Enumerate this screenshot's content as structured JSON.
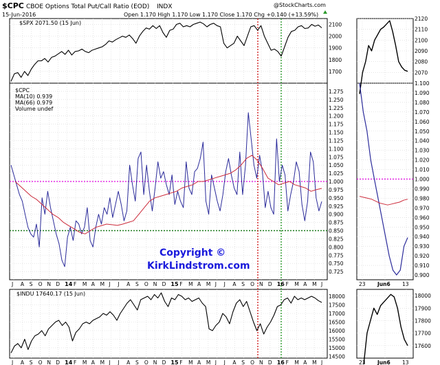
{
  "header": {
    "symbol": "$CPC",
    "description": "CBOE Options Total Put/Call Ratio (EOD)",
    "exchange": "INDX",
    "watermark": "@StockCharts.com",
    "date": "15-Jun-2016",
    "ohlc": "Open 1.170  High 1.170  Low 1.170  Close 1.170  Chg +0.140 (+13.59%)"
  },
  "copyright": {
    "line1": "Copyright ©",
    "line2": "KirkLindstrom.com"
  },
  "colors": {
    "price_line": "#000000",
    "cpc_line": "#2a2a9a",
    "ma66_line": "#cc2a3a",
    "magenta_ref": "#e000e0",
    "green_ref": "#1a7a1a",
    "red_vline": "#d02020",
    "green_vline": "#2a9a2a",
    "copyright_text": "#1a1adc",
    "grid": "#d4d4d4"
  },
  "x_labels_main": [
    "J",
    "A",
    "S",
    "O",
    "N",
    "D",
    "14",
    "F",
    "M",
    "A",
    "M",
    "J",
    "J",
    "A",
    "S",
    "O",
    "N",
    "D",
    "15",
    "F",
    "M",
    "A",
    "M",
    "J",
    "J",
    "A",
    "S",
    "O",
    "N",
    "D",
    "16",
    "F",
    "M",
    "A",
    "M",
    "J"
  ],
  "x_labels_inset": [
    "23",
    "Jun6",
    "13"
  ],
  "chart_data": [
    {
      "panel": "spx_main",
      "type": "line",
      "legend": "$SPX 2071.50 (15 Jun)",
      "series": [
        {
          "name": "$SPX",
          "values": [
            1615,
            1680,
            1690,
            1650,
            1700,
            1665,
            1720,
            1760,
            1790,
            1790,
            1810,
            1780,
            1820,
            1830,
            1850,
            1870,
            1845,
            1880,
            1840,
            1870,
            1875,
            1890,
            1870,
            1860,
            1880,
            1890,
            1900,
            1910,
            1930,
            1960,
            1950,
            1970,
            1985,
            2000,
            1990,
            2010,
            1980,
            1940,
            2000,
            2040,
            2070,
            2060,
            2090,
            2065,
            2090,
            2030,
            1990,
            2050,
            2060,
            2100,
            2110,
            2080,
            2090,
            2080,
            2100,
            2110,
            2120,
            2105,
            2080,
            2100,
            2110,
            2090,
            2080,
            1940,
            1900,
            1920,
            1940,
            2000,
            1960,
            1920,
            2000,
            2080,
            2090,
            2050,
            2090,
            2000,
            1940,
            1880,
            1890,
            1870,
            1830,
            1910,
            1990,
            2040,
            2050,
            2080,
            2090,
            2065,
            2070,
            2100,
            2085,
            2095,
            2071
          ]
        }
      ],
      "ylim": [
        1600,
        2150
      ],
      "ticks": [
        1700,
        1800,
        1900,
        2000,
        2100
      ]
    },
    {
      "panel": "cpc_main",
      "type": "line",
      "legend": [
        "$CPC",
        "MA(10) 0.939",
        "MA(66) 0.979",
        "Volume undef"
      ],
      "series": [
        {
          "name": "MA(10)",
          "values": [
            1.05,
            1.02,
            0.99,
            0.96,
            0.94,
            0.9,
            0.86,
            0.84,
            0.83,
            0.87,
            0.8,
            0.95,
            0.9,
            0.97,
            0.92,
            0.88,
            0.84,
            0.81,
            0.76,
            0.74,
            0.83,
            0.86,
            0.82,
            0.88,
            0.87,
            0.84,
            0.86,
            0.92,
            0.82,
            0.8,
            0.86,
            0.9,
            0.87,
            0.92,
            0.9,
            0.95,
            0.89,
            0.93,
            0.97,
            0.93,
            0.88,
            0.91,
            1.05,
            0.99,
            0.94,
            1.07,
            1.09,
            0.96,
            1.05,
            0.97,
            0.91,
            0.98,
            1.06,
            1.01,
            1.03,
            0.99,
            0.96,
            1.02,
            0.93,
            0.97,
            0.94,
            0.92,
            1.06,
            0.98,
            0.96,
            1.03,
            1.04,
            1.07,
            1.12,
            0.94,
            0.9,
            1.02,
            0.98,
            0.94,
            0.91,
            0.96,
            1.03,
            1.07,
            1.02,
            0.98,
            0.96,
            1.09,
            0.96,
            1.05,
            1.21,
            1.13,
            1.05,
            1.01,
            1.08,
            1.03,
            0.92,
            0.97,
            0.92,
            0.9,
            1.13,
            1.0,
            1.05,
            1.02,
            0.91,
            0.96,
            1.0,
            1.06,
            1.03,
            0.93,
            0.88,
            0.94,
            1.09,
            1.06,
            0.95,
            0.91,
            0.939
          ]
        },
        {
          "name": "MA(66)",
          "values": [
            1.0,
            0.985,
            0.97,
            0.955,
            0.945,
            0.93,
            0.915,
            0.9,
            0.89,
            0.875,
            0.865,
            0.855,
            0.845,
            0.84,
            0.85,
            0.86,
            0.865,
            0.87,
            0.868,
            0.866,
            0.87,
            0.875,
            0.88,
            0.9,
            0.92,
            0.94,
            0.95,
            0.955,
            0.96,
            0.965,
            0.97,
            0.98,
            0.985,
            0.99,
            1.0,
            1.0,
            1.005,
            1.01,
            1.015,
            1.02,
            1.025,
            1.035,
            1.05,
            1.07,
            1.08,
            1.065,
            1.04,
            1.01,
            1.0,
            0.99,
            0.995,
            1.0,
            0.99,
            0.985,
            0.98,
            0.97,
            0.975,
            0.979
          ]
        }
      ],
      "ylim": [
        0.7,
        1.3
      ],
      "ticks": [
        0.725,
        0.75,
        0.775,
        0.8,
        0.825,
        0.85,
        0.875,
        0.9,
        0.925,
        0.95,
        0.975,
        1.0,
        1.025,
        1.05,
        1.075,
        1.1,
        1.125,
        1.15,
        1.175,
        1.2,
        1.225,
        1.25,
        1.275
      ],
      "reference_lines": [
        1.0,
        0.85
      ]
    },
    {
      "panel": "indu_main",
      "type": "line",
      "legend": "$INDU 17640.17 (15 Jun)",
      "series": [
        {
          "name": "$INDU",
          "values": [
            14700,
            15100,
            15250,
            15000,
            15500,
            14900,
            15400,
            15700,
            15800,
            16000,
            15700,
            16100,
            16300,
            16500,
            16600,
            16300,
            16500,
            16200,
            15400,
            15900,
            16100,
            16400,
            16500,
            16400,
            16600,
            16700,
            16800,
            17000,
            16900,
            17100,
            16900,
            16600,
            17000,
            17300,
            17600,
            17800,
            17500,
            17200,
            17800,
            17900,
            18000,
            17800,
            18100,
            17900,
            18200,
            17700,
            17400,
            17900,
            17800,
            18100,
            18000,
            17800,
            17900,
            17700,
            17800,
            17900,
            17600,
            17400,
            16100,
            16000,
            16300,
            16500,
            17000,
            16800,
            16400,
            17100,
            17600,
            17800,
            17400,
            17700,
            17100,
            16500,
            16000,
            16400,
            15800,
            16200,
            16500,
            16900,
            17400,
            17500,
            17800,
            17900,
            17600,
            18000,
            17800,
            17900,
            17800,
            17900,
            18000,
            17900,
            17750,
            17640
          ]
        }
      ],
      "ylim": [
        14400,
        18400
      ],
      "ticks": [
        14500,
        15000,
        15500,
        16000,
        16500,
        17000,
        17500,
        18000
      ]
    },
    {
      "panel": "spx_inset",
      "type": "line",
      "series": [
        {
          "name": "$SPX",
          "values": [
            2050,
            2070,
            2080,
            2095,
            2090,
            2100,
            2105,
            2110,
            2112,
            2115,
            2118,
            2108,
            2095,
            2080,
            2075,
            2072,
            2071
          ]
        }
      ],
      "ylim": [
        2060,
        2120
      ],
      "ticks": [
        2070,
        2080,
        2090,
        2100,
        2110,
        2120
      ]
    },
    {
      "panel": "cpc_inset",
      "type": "line",
      "series": [
        {
          "name": "MA(10)",
          "values": [
            1.1,
            1.07,
            1.05,
            1.02,
            1.0,
            0.98,
            0.96,
            0.94,
            0.92,
            0.905,
            0.9,
            0.905,
            0.93,
            0.939
          ]
        },
        {
          "name": "MA(66)",
          "values": [
            0.982,
            0.981,
            0.98,
            0.979,
            0.977,
            0.975,
            0.974,
            0.973,
            0.974,
            0.975,
            0.976,
            0.978,
            0.979
          ]
        }
      ],
      "ylim": [
        0.895,
        1.1
      ],
      "ticks": [
        0.9,
        0.91,
        0.92,
        0.93,
        0.94,
        0.95,
        0.96,
        0.97,
        0.98,
        0.99,
        1.0,
        1.01,
        1.02,
        1.03,
        1.04,
        1.05,
        1.06,
        1.07,
        1.08,
        1.09,
        1.1
      ],
      "reference_lines": [
        1.0
      ]
    },
    {
      "panel": "indu_inset",
      "type": "line",
      "series": [
        {
          "name": "$INDU",
          "values": [
            17450,
            17700,
            17800,
            17900,
            17850,
            17920,
            17950,
            17980,
            18010,
            17990,
            17900,
            17750,
            17650,
            17600
          ]
        }
      ],
      "ylim": [
        17500,
        18050
      ],
      "ticks": [
        17600,
        17700,
        17800,
        17900,
        18000
      ]
    }
  ]
}
